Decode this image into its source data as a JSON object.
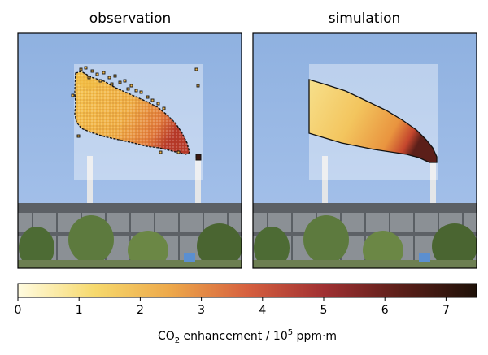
{
  "chart_data": [
    {
      "type": "heatmap",
      "title": "observation",
      "note_background": "photograph of industrial plant with smokestack",
      "plume_shape": "noisy, pixelated"
    },
    {
      "type": "heatmap",
      "title": "simulation",
      "plume_shape": "smooth"
    }
  ],
  "colorbar": {
    "label_prefix": "CO",
    "label_sub": "2",
    "label_mid": " enhancement / 10",
    "label_sup": "5",
    "label_suffix": " ppm·m",
    "range": [
      0,
      7.5
    ],
    "ticks": [
      "0",
      "1",
      "2",
      "3",
      "4",
      "5",
      "6",
      "7"
    ],
    "colors": [
      "#fffbe0",
      "#f6d96d",
      "#eda84a",
      "#d6603f",
      "#a03032",
      "#5b1f19",
      "#1e1108"
    ]
  }
}
